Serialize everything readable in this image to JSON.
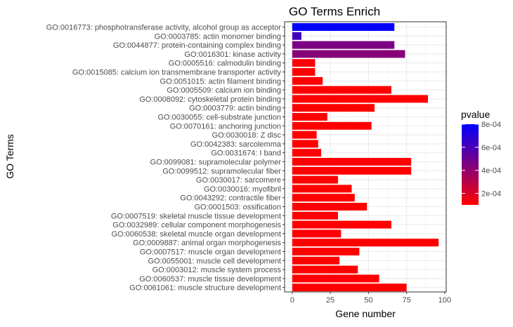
{
  "chart_data": {
    "type": "bar",
    "orientation": "horizontal",
    "title": "GO Terms Enrich",
    "xlabel": "Gene number",
    "ylabel": "GO Terms",
    "xlim": [
      0,
      100
    ],
    "xticks": [
      0,
      25,
      50,
      75,
      100
    ],
    "grid": true,
    "legend_position": "right",
    "legend": {
      "title": "pvalue",
      "low_color": "#FF0000",
      "high_color": "#0000FF",
      "range": [
        0.0001,
        0.0008
      ],
      "tick_values": [
        0.0002,
        0.0004,
        0.0006,
        0.0008
      ],
      "tick_labels": [
        "2e-04",
        "4e-04",
        "6e-04",
        "8e-04"
      ]
    },
    "categories": [
      "GO:0016773: phosphotransferase activity, alcohol group as acceptor",
      "GO:0003785: actin monomer binding",
      "GO:0044877: protein-containing complex binding",
      "GO:0016301: kinase activity",
      "GO:0005516: calmodulin binding",
      "GO:0015085: calcium ion transmembrane transporter activity",
      "GO:0051015: actin filament binding",
      "GO:0005509: calcium ion binding",
      "GO:0008092: cytoskeletal protein binding",
      "GO:0003779: actin binding",
      "GO:0030055: cell-substrate junction",
      "GO:0070161: anchoring junction",
      "GO:0030018: Z disc",
      "GO:0042383: sarcolemma",
      "GO:0031674: I band",
      "GO:0099081: supramolecular polymer",
      "GO:0099512: supramolecular fiber",
      "GO:0030017: sarcomere",
      "GO:0030016: myofibril",
      "GO:0043292: contractile fiber",
      "GO:0001503: ossification",
      "GO:0007519: skeletal muscle tissue development",
      "GO:0032989: cellular component morphogenesis",
      "GO:0060538: skeletal muscle organ development",
      "GO:0009887: animal organ morphogenesis",
      "GO:0007517: muscle organ development",
      "GO:0055001: muscle cell development",
      "GO:0003012: muscle system process",
      "GO:0060537: muscle tissue development",
      "GO:0061061: muscle structure development"
    ],
    "values": [
      67,
      6,
      67,
      74,
      15,
      15,
      20,
      65,
      89,
      54,
      23,
      52,
      16,
      17,
      19,
      78,
      78,
      30,
      39,
      41,
      49,
      30,
      65,
      32,
      96,
      44,
      31,
      43,
      57,
      75
    ],
    "pvalues": [
      0.00083,
      0.00062,
      0.00046,
      0.00043,
      0.00011,
      0.0001,
      0.0001,
      0.0001,
      0.0001,
      0.0001,
      0.0001,
      0.0001,
      0.0001,
      0.0001,
      0.0001,
      0.0001,
      0.0001,
      0.0001,
      0.0001,
      0.0001,
      0.0001,
      0.0001,
      0.0001,
      0.0001,
      0.0001,
      0.0001,
      0.0001,
      0.0001,
      0.0001,
      0.0001
    ]
  }
}
